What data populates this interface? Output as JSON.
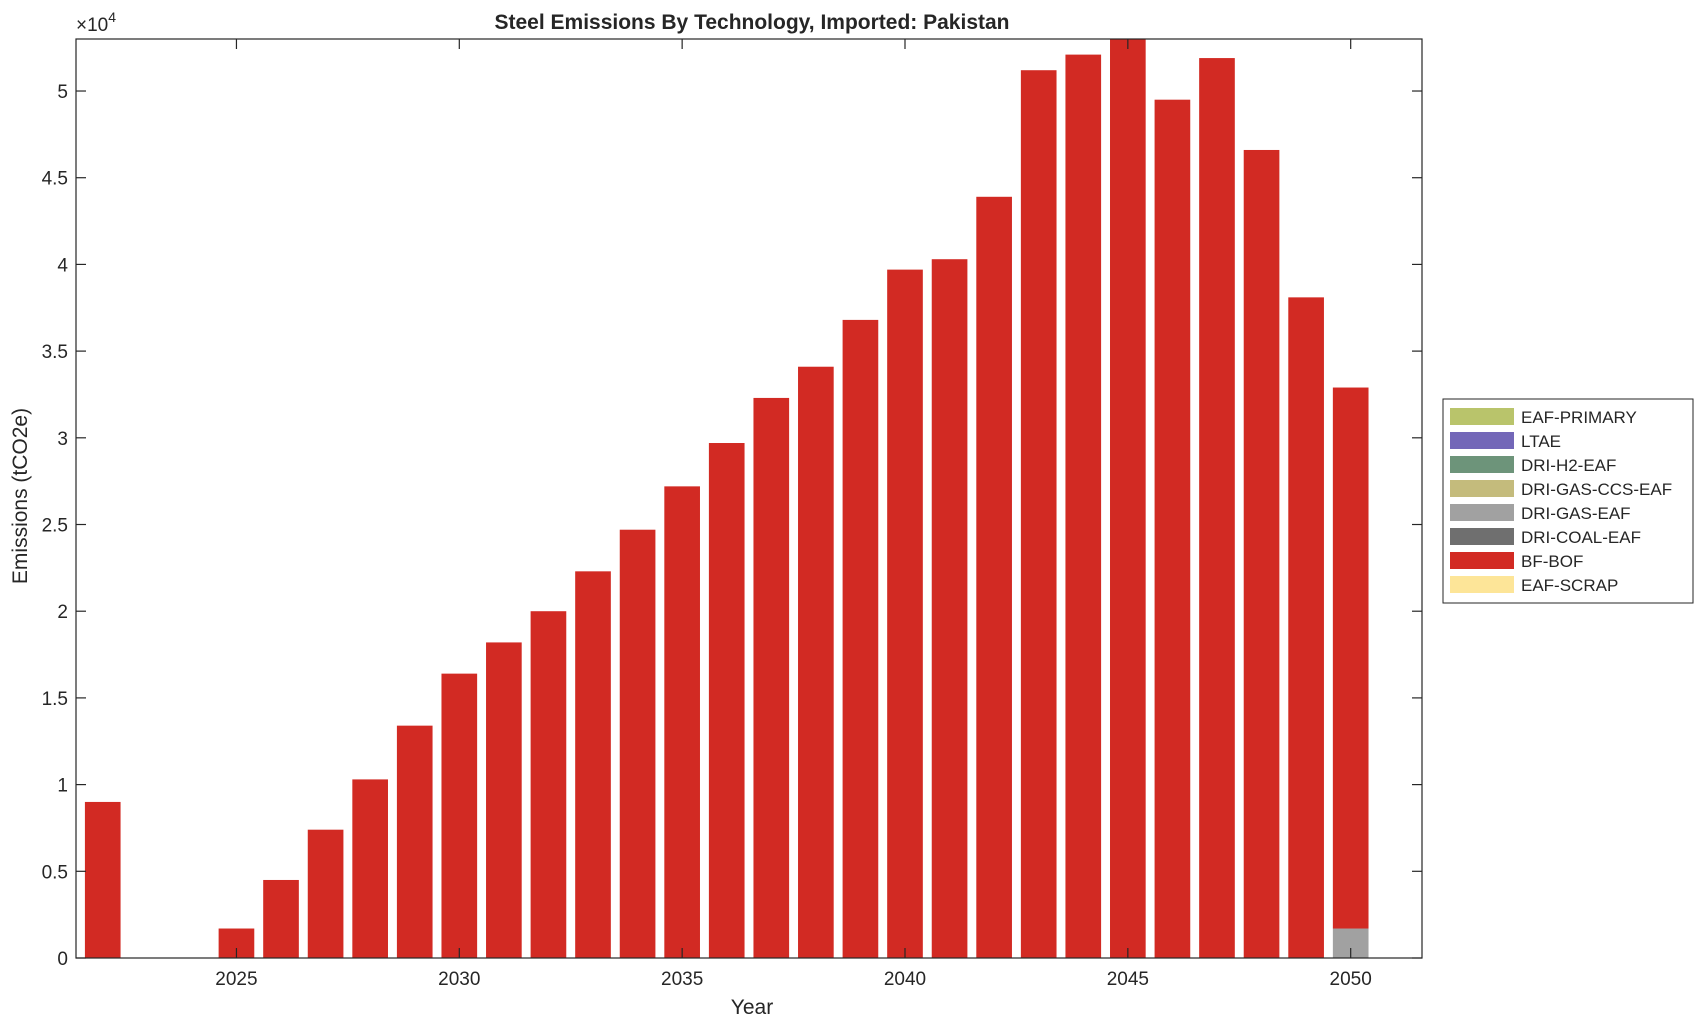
{
  "chart_data": {
    "type": "bar",
    "stacked": true,
    "title": "Steel Emissions By Technology, Imported: Pakistan",
    "xlabel": "Year",
    "ylabel": "Emissions (tCO2e)",
    "y_multiplier_label": "×10",
    "y_multiplier_exponent": "4",
    "xlim": [
      2021.4,
      2051.6
    ],
    "ylim": [
      0,
      53000
    ],
    "x_ticks": [
      2025,
      2030,
      2035,
      2040,
      2045,
      2050
    ],
    "y_ticks": [
      0,
      5000,
      10000,
      15000,
      20000,
      25000,
      30000,
      35000,
      40000,
      45000,
      50000
    ],
    "y_tick_labels": [
      "0",
      "0.5",
      "1",
      "1.5",
      "2",
      "2.5",
      "3",
      "3.5",
      "4",
      "4.5",
      "5"
    ],
    "grid": false,
    "legend_position": "right",
    "x": [
      2022,
      2023,
      2024,
      2025,
      2026,
      2027,
      2028,
      2029,
      2030,
      2031,
      2032,
      2033,
      2034,
      2035,
      2036,
      2037,
      2038,
      2039,
      2040,
      2041,
      2042,
      2043,
      2044,
      2045,
      2046,
      2047,
      2048,
      2049,
      2050
    ],
    "series": [
      {
        "name": "EAF-PRIMARY",
        "color": "#b9c46b",
        "values": [
          0,
          0,
          0,
          0,
          0,
          0,
          0,
          0,
          0,
          0,
          0,
          0,
          0,
          0,
          0,
          0,
          0,
          0,
          0,
          0,
          0,
          0,
          0,
          0,
          0,
          0,
          0,
          0,
          0
        ]
      },
      {
        "name": "LTAE",
        "color": "#7367b8",
        "values": [
          0,
          0,
          0,
          0,
          0,
          0,
          0,
          0,
          0,
          0,
          0,
          0,
          0,
          0,
          0,
          0,
          0,
          0,
          0,
          0,
          0,
          0,
          0,
          0,
          0,
          0,
          0,
          0,
          0
        ]
      },
      {
        "name": "DRI-H2-EAF",
        "color": "#6d947a",
        "values": [
          0,
          0,
          0,
          0,
          0,
          0,
          0,
          0,
          0,
          0,
          0,
          0,
          0,
          0,
          0,
          0,
          0,
          0,
          0,
          0,
          0,
          0,
          0,
          0,
          0,
          0,
          0,
          0,
          0
        ]
      },
      {
        "name": "DRI-GAS-CCS-EAF",
        "color": "#c4bb7c",
        "values": [
          0,
          0,
          0,
          0,
          0,
          0,
          0,
          0,
          0,
          0,
          0,
          0,
          0,
          0,
          0,
          0,
          0,
          0,
          0,
          0,
          0,
          0,
          0,
          0,
          0,
          0,
          0,
          0,
          0
        ]
      },
      {
        "name": "DRI-GAS-EAF",
        "color": "#a1a1a1",
        "values": [
          0,
          0,
          0,
          0,
          0,
          0,
          0,
          0,
          0,
          0,
          0,
          0,
          0,
          0,
          0,
          0,
          0,
          0,
          0,
          0,
          0,
          0,
          0,
          0,
          0,
          0,
          0,
          0,
          1700
        ]
      },
      {
        "name": "DRI-COAL-EAF",
        "color": "#6f6f6f",
        "values": [
          0,
          0,
          0,
          0,
          0,
          0,
          0,
          0,
          0,
          0,
          0,
          0,
          0,
          0,
          0,
          0,
          0,
          0,
          0,
          0,
          0,
          0,
          0,
          0,
          0,
          0,
          0,
          0,
          0
        ]
      },
      {
        "name": "BF-BOF",
        "color": "#d22a23",
        "values": [
          9000,
          0,
          0,
          1700,
          4500,
          7400,
          10300,
          13400,
          16400,
          18200,
          20000,
          22300,
          24700,
          27200,
          29700,
          32300,
          34100,
          36800,
          39700,
          40300,
          43900,
          51200,
          52100,
          53000,
          49500,
          51900,
          46600,
          38100,
          31200
        ]
      },
      {
        "name": "EAF-SCRAP",
        "color": "#fde598",
        "values": [
          0,
          0,
          0,
          0,
          0,
          0,
          0,
          0,
          0,
          0,
          0,
          0,
          0,
          0,
          0,
          0,
          0,
          0,
          0,
          0,
          0,
          0,
          0,
          0,
          0,
          0,
          0,
          0,
          0
        ]
      }
    ]
  }
}
